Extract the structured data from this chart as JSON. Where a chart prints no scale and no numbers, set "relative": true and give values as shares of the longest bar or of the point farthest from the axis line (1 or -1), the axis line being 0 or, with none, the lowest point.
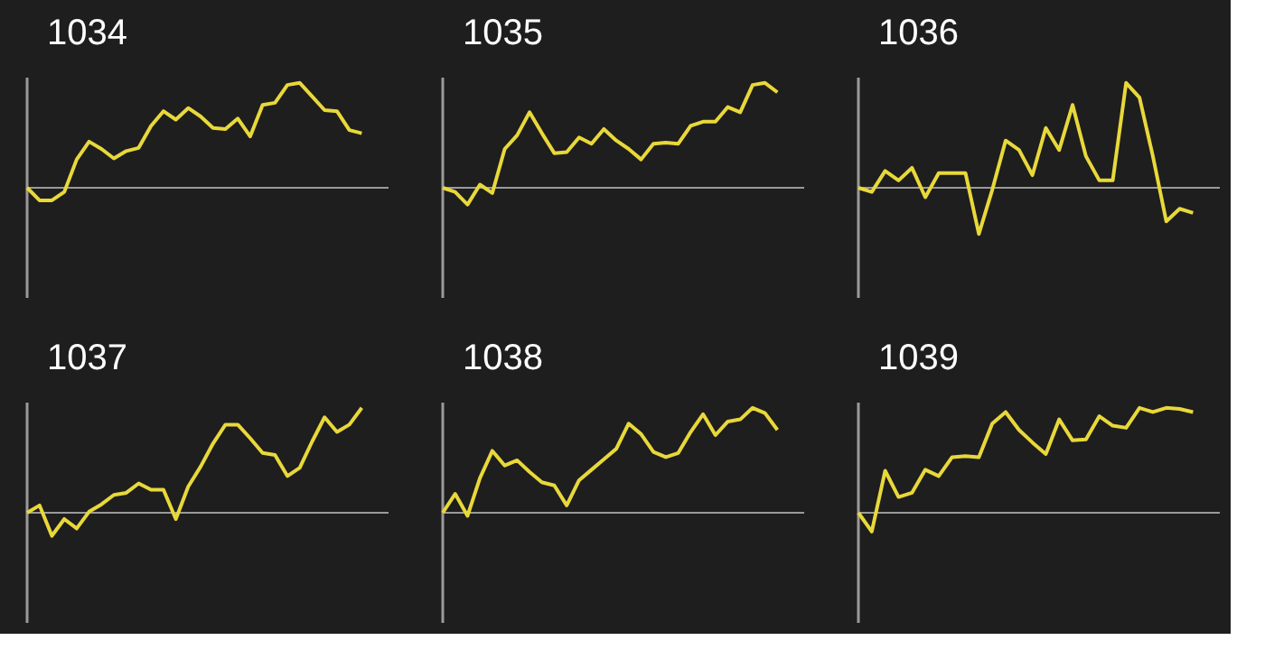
{
  "chart_data": [
    {
      "type": "line",
      "title": "1034",
      "relative": true,
      "categories": [
        null,
        null,
        null,
        null,
        null,
        null,
        null,
        null,
        null,
        null,
        null,
        null,
        null,
        null,
        null,
        null,
        null,
        null,
        null,
        null,
        null,
        null,
        null,
        null,
        null,
        null,
        null,
        null
      ],
      "series": [
        {
          "color": "#e8d83a",
          "values": [
            0,
            -0.12,
            -0.12,
            -0.04,
            0.27,
            0.44,
            0.37,
            0.28,
            0.35,
            0.38,
            0.59,
            0.73,
            0.65,
            0.76,
            0.68,
            0.57,
            0.56,
            0.66,
            0.49,
            0.79,
            0.81,
            0.98,
            1.0,
            0.87,
            0.74,
            0.73,
            0.55,
            0.52
          ]
        }
      ]
    },
    {
      "type": "line",
      "title": "1035",
      "relative": true,
      "categories": [
        null,
        null,
        null,
        null,
        null,
        null,
        null,
        null,
        null,
        null,
        null,
        null,
        null,
        null,
        null,
        null,
        null,
        null,
        null,
        null,
        null,
        null,
        null,
        null,
        null,
        null,
        null,
        null
      ],
      "series": [
        {
          "color": "#e8d83a",
          "values": [
            0,
            -0.04,
            -0.16,
            0.03,
            -0.05,
            0.37,
            0.5,
            0.72,
            0.52,
            0.33,
            0.34,
            0.48,
            0.42,
            0.56,
            0.45,
            0.37,
            0.27,
            0.42,
            0.43,
            0.42,
            0.59,
            0.63,
            0.63,
            0.77,
            0.72,
            0.98,
            1.0,
            0.91
          ]
        }
      ]
    },
    {
      "type": "line",
      "title": "1036",
      "relative": true,
      "categories": [
        null,
        null,
        null,
        null,
        null,
        null,
        null,
        null,
        null,
        null,
        null,
        null,
        null,
        null,
        null,
        null,
        null,
        null,
        null,
        null,
        null,
        null,
        null,
        null,
        null,
        null
      ],
      "series": [
        {
          "color": "#e8d83a",
          "values": [
            0,
            -0.04,
            0.16,
            0.07,
            0.19,
            -0.09,
            0.14,
            0.14,
            0.14,
            -0.44,
            -0.02,
            0.45,
            0.36,
            0.12,
            0.57,
            0.36,
            0.79,
            0.3,
            0.07,
            0.07,
            1.0,
            0.86,
            0.3,
            -0.32,
            -0.2,
            -0.24
          ]
        }
      ]
    },
    {
      "type": "line",
      "title": "1037",
      "relative": true,
      "categories": [
        null,
        null,
        null,
        null,
        null,
        null,
        null,
        null,
        null,
        null,
        null,
        null,
        null,
        null,
        null,
        null,
        null,
        null,
        null,
        null,
        null,
        null,
        null,
        null,
        null,
        null,
        null,
        null
      ],
      "series": [
        {
          "color": "#e8d83a",
          "values": [
            0,
            0.07,
            -0.22,
            -0.06,
            -0.15,
            0.01,
            0.08,
            0.17,
            0.19,
            0.28,
            0.22,
            0.22,
            -0.06,
            0.25,
            0.44,
            0.66,
            0.84,
            0.84,
            0.71,
            0.57,
            0.55,
            0.35,
            0.43,
            0.68,
            0.91,
            0.77,
            0.84,
            1.0
          ]
        }
      ]
    },
    {
      "type": "line",
      "title": "1038",
      "relative": true,
      "categories": [
        null,
        null,
        null,
        null,
        null,
        null,
        null,
        null,
        null,
        null,
        null,
        null,
        null,
        null,
        null,
        null,
        null,
        null,
        null,
        null,
        null,
        null,
        null,
        null,
        null,
        null,
        null,
        null
      ],
      "series": [
        {
          "color": "#e8d83a",
          "values": [
            0,
            0.18,
            -0.03,
            0.33,
            0.59,
            0.45,
            0.5,
            0.39,
            0.29,
            0.26,
            0.07,
            0.31,
            0.41,
            0.51,
            0.61,
            0.85,
            0.75,
            0.58,
            0.53,
            0.57,
            0.77,
            0.94,
            0.74,
            0.87,
            0.89,
            1.0,
            0.95,
            0.79
          ]
        }
      ]
    },
    {
      "type": "line",
      "title": "1039",
      "relative": true,
      "categories": [
        null,
        null,
        null,
        null,
        null,
        null,
        null,
        null,
        null,
        null,
        null,
        null,
        null,
        null,
        null,
        null,
        null,
        null,
        null,
        null,
        null,
        null,
        null,
        null,
        null,
        null
      ],
      "series": [
        {
          "color": "#e8d83a",
          "values": [
            0,
            -0.18,
            0.4,
            0.15,
            0.19,
            0.41,
            0.35,
            0.53,
            0.54,
            0.53,
            0.85,
            0.96,
            0.79,
            0.67,
            0.56,
            0.89,
            0.69,
            0.7,
            0.92,
            0.83,
            0.81,
            1.0,
            0.96,
            1.0,
            0.99,
            0.96
          ]
        }
      ]
    }
  ]
}
